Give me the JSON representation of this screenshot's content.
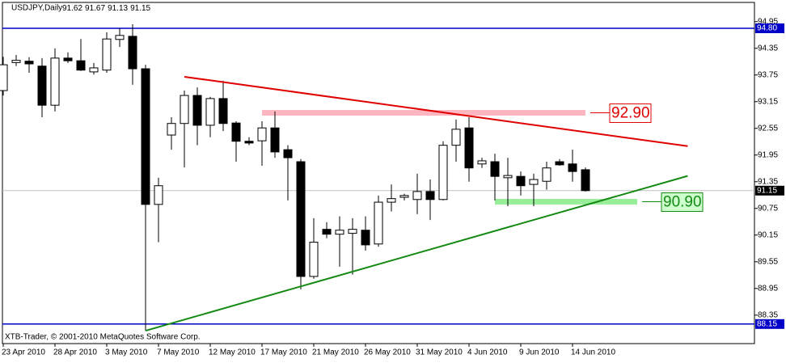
{
  "chart_data": {
    "type": "candlestick",
    "title": "USDJPY,Daily",
    "footer": "XTB-Trader, © 2001-2010 MetaQuotes Software Corp.",
    "categories": [
      "23 Apr 2010",
      null,
      null,
      null,
      "28 Apr 2010",
      null,
      null,
      null,
      "3 May 2010",
      null,
      null,
      null,
      "7 May 2010",
      null,
      null,
      null,
      "12 May 2010",
      null,
      null,
      null,
      "17 May 2010",
      null,
      null,
      null,
      "21 May 2010",
      null,
      null,
      null,
      "26 May 2010",
      null,
      null,
      null,
      "31 May 2010",
      null,
      null,
      null,
      "4 Jun 2010",
      null,
      null,
      null,
      "9 Jun 2010",
      null,
      null,
      null,
      "14 Jun 2010",
      null
    ],
    "open": [
      93.4,
      94.03,
      94.06,
      93.95,
      93.07,
      94.13,
      94.07,
      93.82,
      93.86,
      94.55,
      94.62,
      93.89,
      90.84,
      92.4,
      92.66,
      93.29,
      92.62,
      93.22,
      92.67,
      92.26,
      92.27,
      92.56,
      92.07,
      91.8,
      89.22,
      90.28,
      90.17,
      90.19,
      90.26,
      89.95,
      90.89,
      91.0,
      90.95,
      91.13,
      90.95,
      92.17,
      92.56,
      91.75,
      91.8,
      91.44,
      91.47,
      91.29,
      91.36,
      91.8,
      91.75,
      91.62
    ],
    "high": [
      94.16,
      94.2,
      94.15,
      94.13,
      94.35,
      94.26,
      94.56,
      94.02,
      94.71,
      94.8,
      94.89,
      93.98,
      91.44,
      92.8,
      93.4,
      93.47,
      93.26,
      93.62,
      92.71,
      92.35,
      92.71,
      92.93,
      92.17,
      91.86,
      90.53,
      90.44,
      90.57,
      90.53,
      90.57,
      91.04,
      91.29,
      91.08,
      91.53,
      91.4,
      92.26,
      92.75,
      92.8,
      91.89,
      91.98,
      91.89,
      91.58,
      91.53,
      91.8,
      91.86,
      92.07,
      91.67
    ],
    "low": [
      93.29,
      93.95,
      93.8,
      92.8,
      92.93,
      94.02,
      93.84,
      93.76,
      93.8,
      94.38,
      93.53,
      88.0,
      89.99,
      92.07,
      91.67,
      92.17,
      92.35,
      92.49,
      91.8,
      92.17,
      91.71,
      91.89,
      90.93,
      88.93,
      89.17,
      90.08,
      89.44,
      89.26,
      89.8,
      89.89,
      90.68,
      90.93,
      90.62,
      90.49,
      90.93,
      91.8,
      91.35,
      91.66,
      90.93,
      90.8,
      91.04,
      90.8,
      91.17,
      91.71,
      91.35,
      91.13
    ],
    "close": [
      93.98,
      94.08,
      94.0,
      93.07,
      94.13,
      94.07,
      93.86,
      93.91,
      94.56,
      94.64,
      93.89,
      90.84,
      91.26,
      92.66,
      93.29,
      92.62,
      93.22,
      92.66,
      92.26,
      92.22,
      92.56,
      92.02,
      91.89,
      89.22,
      89.99,
      90.17,
      90.26,
      90.28,
      89.93,
      90.89,
      90.97,
      91.04,
      91.13,
      90.95,
      92.17,
      92.53,
      91.66,
      91.82,
      91.47,
      91.49,
      91.26,
      91.4,
      91.66,
      91.73,
      91.58,
      91.15
    ],
    "ylim": [
      87.71,
      95.4
    ],
    "yticks": [
      94.95,
      94.35,
      93.75,
      93.15,
      92.55,
      91.95,
      91.35,
      90.75,
      90.15,
      89.55,
      88.95,
      88.35
    ],
    "levels": [
      {
        "value": 94.8,
        "label": "94.80",
        "color": "#0000c8"
      },
      {
        "value": 88.15,
        "color": "#0000c8"
      },
      {
        "value": 91.15,
        "color": "#c0c0c0"
      }
    ],
    "trendlines": [
      {
        "color": "#e00000",
        "x": [
          14,
          52.9
        ],
        "y": [
          93.71,
          92.15
        ]
      },
      {
        "color": "#138a13",
        "x": [
          11,
          52.9
        ],
        "y": [
          88.0,
          91.48
        ]
      }
    ],
    "zones": [
      {
        "value": 92.9,
        "label": "92.90",
        "color": "#ffb6c1",
        "text_color": "#e00000",
        "x": [
          20,
          45
        ]
      },
      {
        "value": 90.9,
        "label": "90.90",
        "color": "#99ee99",
        "text_color": "#138a13",
        "x": [
          38,
          49
        ]
      }
    ]
  }
}
